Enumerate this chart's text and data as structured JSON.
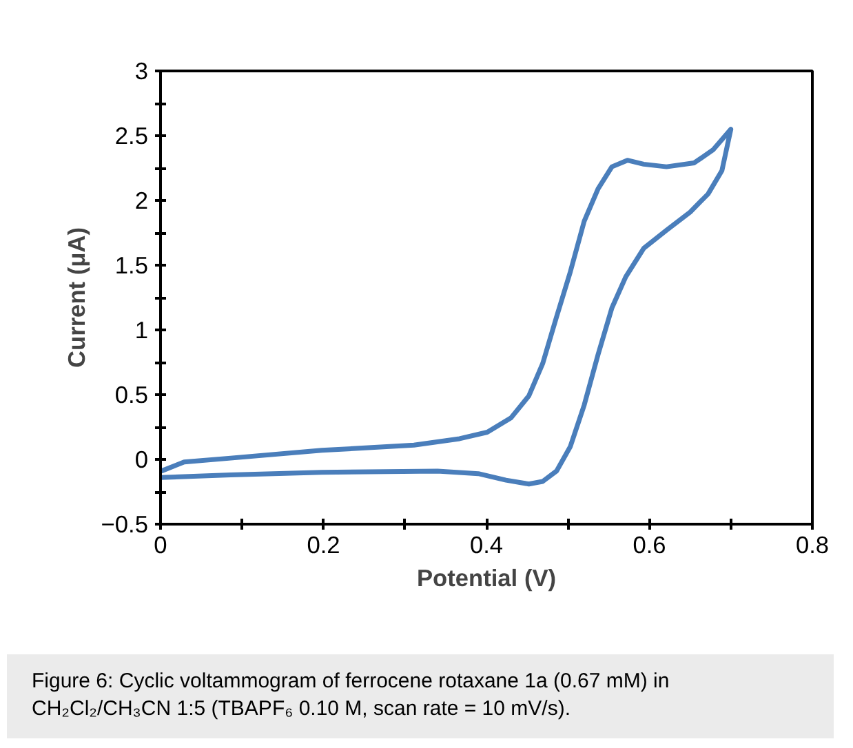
{
  "chart_data": {
    "type": "line",
    "xlabel": "Potential (V)",
    "ylabel": "Current (μA)",
    "annotations": [
      "Figure 6: Cyclic voltammogram of ferrocene rotaxane 1a (0.67 mM) in CH₂Cl₂/CH₃CN 1:5 (TBAPF₆ 0.10 M, scan rate = 10 mV/s)."
    ],
    "xlim": [
      0,
      0.8
    ],
    "ylim": [
      -0.5,
      3
    ],
    "xticks": [
      0,
      {
        "value": 0.1,
        "label": null
      },
      0.2,
      {
        "value": 0.3,
        "label": null
      },
      0.4,
      {
        "value": 0.5,
        "label": null
      },
      0.6,
      {
        "value": 0.7,
        "label": null
      },
      0.8
    ],
    "yticks": [
      {
        "value": -0.5,
        "label": "−0.5"
      },
      {
        "value": -0.25,
        "label": null
      },
      0,
      {
        "value": 0.25,
        "label": null
      },
      0.5,
      {
        "value": 0.75,
        "label": null
      },
      1,
      {
        "value": 1.25,
        "label": null
      },
      1.5,
      {
        "value": 1.75,
        "label": null
      },
      2,
      {
        "value": 2.25,
        "label": null
      },
      2.5,
      {
        "value": 2.75,
        "label": null
      },
      3
    ],
    "grid": false,
    "series": [
      {
        "color": "#4a7ebb",
        "x": [
          0.001,
          0.029,
          0.086,
          0.198,
          0.311,
          0.367,
          0.401,
          0.43,
          0.452,
          0.469,
          0.486,
          0.503,
          0.52,
          0.537,
          0.554,
          0.573,
          0.593,
          0.621,
          0.655,
          0.678,
          0.7,
          0.689,
          0.672,
          0.65,
          0.621,
          0.593,
          0.571,
          0.554,
          0.537,
          0.52,
          0.503,
          0.486,
          0.469,
          0.452,
          0.424,
          0.39,
          0.34,
          0.198,
          0.086,
          0.001
        ],
        "values": [
          -0.09,
          -0.02,
          0.01,
          0.07,
          0.11,
          0.16,
          0.21,
          0.32,
          0.49,
          0.74,
          1.1,
          1.45,
          1.84,
          2.09,
          2.26,
          2.31,
          2.28,
          2.26,
          2.29,
          2.39,
          2.55,
          2.23,
          2.05,
          1.91,
          1.77,
          1.63,
          1.41,
          1.17,
          0.81,
          0.42,
          0.1,
          -0.09,
          -0.17,
          -0.19,
          -0.16,
          -0.11,
          -0.09,
          -0.1,
          -0.12,
          -0.14
        ]
      }
    ]
  }
}
